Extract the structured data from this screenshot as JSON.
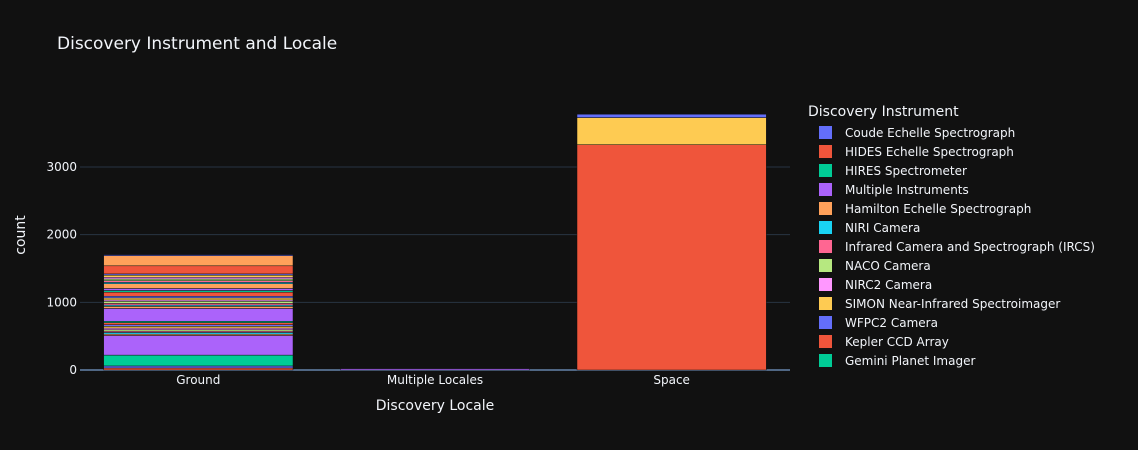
{
  "chart_data": {
    "type": "bar",
    "title": "Discovery Instrument and Locale",
    "xlabel": "Discovery Locale",
    "ylabel": "count",
    "barmode": "stack",
    "categories": [
      "Ground",
      "Multiple Locales",
      "Space"
    ],
    "ylim": [
      0,
      3990
    ],
    "yticks": [
      0,
      1000,
      2000,
      3000
    ],
    "grid": true,
    "legend": {
      "title": "Discovery Instrument",
      "entries": [
        {
          "name": "Coude Echelle Spectrograph",
          "color": "#636efa"
        },
        {
          "name": "HIDES Echelle Spectrograph",
          "color": "#ef553b"
        },
        {
          "name": "HIRES Spectrometer",
          "color": "#00cc96"
        },
        {
          "name": "Multiple Instruments",
          "color": "#ab63fa"
        },
        {
          "name": "Hamilton Echelle Spectrograph",
          "color": "#ffa15a"
        },
        {
          "name": "NIRI Camera",
          "color": "#19d3f3"
        },
        {
          "name": "Infrared Camera and Spectrograph (IRCS)",
          "color": "#ff6692"
        },
        {
          "name": "NACO Camera",
          "color": "#b6e880"
        },
        {
          "name": "NIRC2 Camera",
          "color": "#ff97ff"
        },
        {
          "name": "SIMON Near-Infrared Spectroimager",
          "color": "#fecb52"
        },
        {
          "name": "WFPC2 Camera",
          "color": "#636efa"
        },
        {
          "name": "Kepler CCD Array",
          "color": "#ef553b"
        },
        {
          "name": "Gemini Planet Imager",
          "color": "#00cc96"
        }
      ]
    },
    "stacks": [
      {
        "category": "Ground",
        "segments": [
          {
            "value": 30,
            "color": "#ef553b"
          },
          {
            "value": 30,
            "color": "#636efa"
          },
          {
            "value": 160,
            "color": "#00cc96"
          },
          {
            "value": 290,
            "color": "#ab63fa"
          },
          {
            "value": 20,
            "color": "#ffa15a"
          },
          {
            "value": 25,
            "color": "#19d3f3"
          },
          {
            "value": 20,
            "color": "#ff6692"
          },
          {
            "value": 20,
            "color": "#b6e880"
          },
          {
            "value": 25,
            "color": "#ff97ff"
          },
          {
            "value": 25,
            "color": "#fecb52"
          },
          {
            "value": 25,
            "color": "#636efa"
          },
          {
            "value": 30,
            "color": "#ef553b"
          },
          {
            "value": 20,
            "color": "#00cc96"
          },
          {
            "value": 190,
            "color": "#ab63fa"
          },
          {
            "value": 30,
            "color": "#ffa15a"
          },
          {
            "value": 20,
            "color": "#19d3f3"
          },
          {
            "value": 25,
            "color": "#ff6692"
          },
          {
            "value": 30,
            "color": "#b6e880"
          },
          {
            "value": 20,
            "color": "#ff97ff"
          },
          {
            "value": 30,
            "color": "#fecb52"
          },
          {
            "value": 25,
            "color": "#636efa"
          },
          {
            "value": 60,
            "color": "#ef553b"
          },
          {
            "value": 25,
            "color": "#00cc96"
          },
          {
            "value": 30,
            "color": "#ab63fa"
          },
          {
            "value": 70,
            "color": "#ffa15a"
          },
          {
            "value": 20,
            "color": "#19d3f3"
          },
          {
            "value": 25,
            "color": "#ff6692"
          },
          {
            "value": 25,
            "color": "#b6e880"
          },
          {
            "value": 25,
            "color": "#ff97ff"
          },
          {
            "value": 30,
            "color": "#fecb52"
          },
          {
            "value": 20,
            "color": "#636efa"
          },
          {
            "value": 120,
            "color": "#ef553b"
          },
          {
            "value": 150,
            "color": "#ffa15a"
          },
          {
            "value": 15,
            "color": "#636efa"
          }
        ]
      },
      {
        "category": "Multiple Locales",
        "segments": [
          {
            "value": 20,
            "color": "#ab63fa"
          }
        ]
      },
      {
        "category": "Space",
        "segments": [
          {
            "value": 3330,
            "color": "#ef553b"
          },
          {
            "value": 400,
            "color": "#fecb52"
          },
          {
            "value": 50,
            "color": "#636efa"
          }
        ]
      }
    ]
  }
}
